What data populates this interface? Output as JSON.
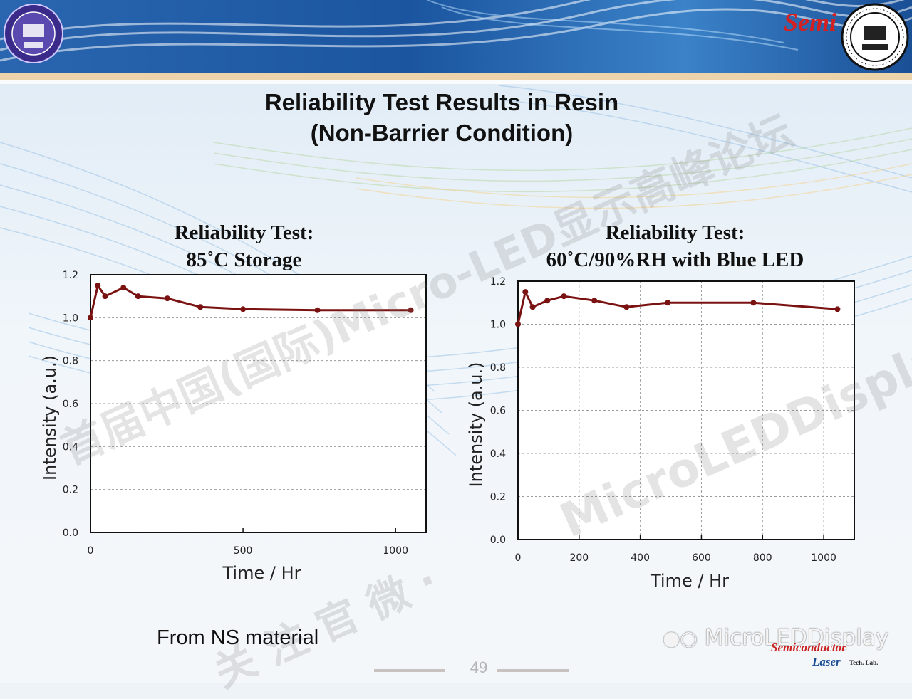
{
  "slide": {
    "title_line1": "Reliability Test Results in Resin",
    "title_line2": "(Non-Barrier Condition)",
    "footnote": "From NS material",
    "page_number": "49"
  },
  "watermarks": {
    "diagonal_cn": "首届中国(国际)Micro-LED显示高峰论坛",
    "diagonal_en": "MicroLEDDisplay",
    "follow_cn": "关 注 官 微 ·",
    "footer_brand": "MicroLEDDisplay"
  },
  "logos": {
    "right_logo_text": "Semi",
    "footer_logo_line1": "Semiconductor",
    "footer_logo_line2": "Laser",
    "footer_logo_line3": "Tech. Lab."
  },
  "colors": {
    "series_line": "#7b1212",
    "grid": "#9a9a9a",
    "banner_dark": "#1f5fa6",
    "banner_light": "#cfe0f2"
  },
  "chart_data": [
    {
      "type": "line",
      "title_line1": "Reliability Test:",
      "title_line2": "85˚C Storage",
      "xlabel": "Time / Hr",
      "ylabel": "Intensity (a.u.)",
      "xlim": [
        0,
        1100
      ],
      "ylim": [
        0,
        1.2
      ],
      "xticks": [
        0,
        500,
        1000
      ],
      "yticks": [
        0.0,
        0.2,
        0.4,
        0.6,
        0.8,
        1.0,
        1.2
      ],
      "ytick_labels": [
        "0.0",
        "0.2",
        "0.4",
        "0.6",
        "0.8",
        "1.0",
        "1.2"
      ],
      "grid": true,
      "series": [
        {
          "x": [
            0,
            24,
            48,
            108,
            156,
            252,
            360,
            500,
            744,
            1050
          ],
          "y": [
            1.0,
            1.15,
            1.1,
            1.14,
            1.1,
            1.09,
            1.05,
            1.04,
            1.035,
            1.035
          ]
        }
      ]
    },
    {
      "type": "line",
      "title_line1": "Reliability Test:",
      "title_line2": "60˚C/90%RH with Blue LED",
      "xlabel": "Time / Hr",
      "ylabel": "Intensity (a.u.)",
      "xlim": [
        0,
        1100
      ],
      "ylim": [
        0,
        1.2
      ],
      "xticks": [
        0,
        200,
        400,
        600,
        800,
        1000
      ],
      "yticks": [
        0.0,
        0.2,
        0.4,
        0.6,
        0.8,
        1.0,
        1.2
      ],
      "ytick_labels": [
        "0.0",
        "0.2",
        "0.4",
        "0.6",
        "0.8",
        "1.0",
        "1.2"
      ],
      "grid": true,
      "series": [
        {
          "x": [
            0,
            24,
            48,
            96,
            150,
            250,
            355,
            490,
            770,
            1045
          ],
          "y": [
            1.0,
            1.15,
            1.08,
            1.11,
            1.13,
            1.11,
            1.08,
            1.1,
            1.1,
            1.07
          ]
        }
      ]
    }
  ]
}
